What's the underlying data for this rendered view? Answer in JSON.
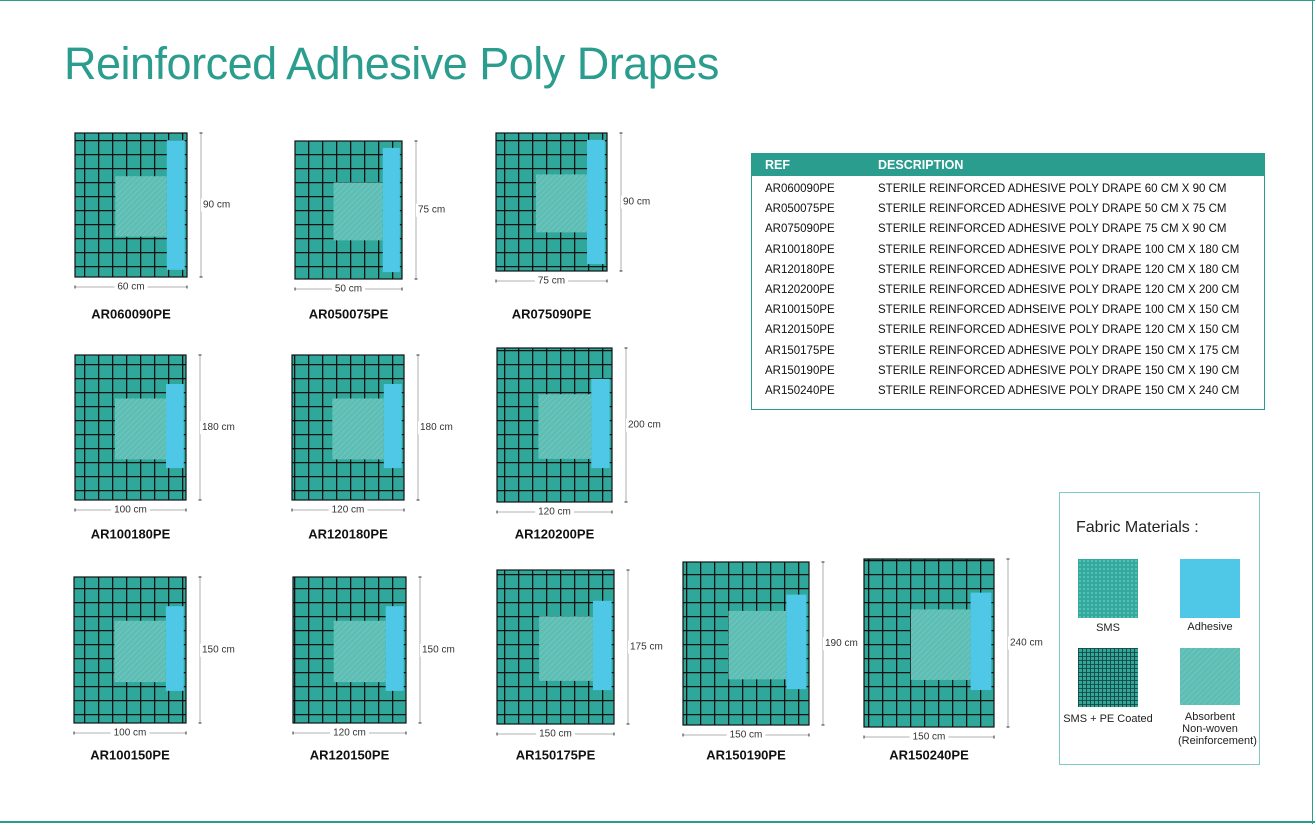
{
  "title": "Reinforced Adhesive Poly Drapes",
  "drapes": [
    {
      "code": "AR060090PE",
      "width": "60 cm",
      "height": "90 cm"
    },
    {
      "code": "AR050075PE",
      "width": "50 cm",
      "height": "75 cm"
    },
    {
      "code": "AR075090PE",
      "width": "75 cm",
      "height": "90 cm"
    },
    {
      "code": "AR100180PE",
      "width": "100 cm",
      "height": "180 cm"
    },
    {
      "code": "AR120180PE",
      "width": "120 cm",
      "height": "180 cm"
    },
    {
      "code": "AR120200PE",
      "width": "120 cm",
      "height": "200 cm"
    },
    {
      "code": "AR100150PE",
      "width": "100 cm",
      "height": "150 cm"
    },
    {
      "code": "AR120150PE",
      "width": "120 cm",
      "height": "150 cm"
    },
    {
      "code": "AR150175PE",
      "width": "150 cm",
      "height": "175 cm"
    },
    {
      "code": "AR150190PE",
      "width": "150 cm",
      "height": "190 cm"
    },
    {
      "code": "AR150240PE",
      "width": "150 cm",
      "height": "240 cm"
    }
  ],
  "table": {
    "header": [
      "REF",
      "DESCRIPTION"
    ],
    "rows": [
      [
        "AR060090PE",
        "STERILE REINFORCED ADHESIVE POLY DRAPE 60 CM X 90 CM"
      ],
      [
        "AR050075PE",
        "STERILE REINFORCED ADHESIVE POLY DRAPE 50 CM X 75 CM"
      ],
      [
        "AR075090PE",
        "STERILE REINFORCED ADHESIVE POLY DRAPE 75 CM X 90 CM"
      ],
      [
        "AR100180PE",
        "STERILE REINFORCED ADHESIVE POLY DRAPE 100 CM X 180 CM"
      ],
      [
        "AR120180PE",
        "STERILE REINFORCED ADHESIVE POLY DRAPE 120 CM X 180 CM"
      ],
      [
        "AR120200PE",
        "STERILE REINFORCED ADHESIVE POLY DRAPE 120 CM X 200 CM"
      ],
      [
        "AR100150PE",
        "STERILE REINFORCED ADHSEIVE POLY DRAPE 100 CM X 150 CM"
      ],
      [
        "AR120150PE",
        "STERILE REINFORCED ADHESIVE POLY DRAPE 120 CM X 150 CM"
      ],
      [
        "AR150175PE",
        "STERILE REINFORCED ADHESIVE POLY DRAPE 150 CM X 175 CM"
      ],
      [
        "AR150190PE",
        "STERILE REINFORCED ADHESIVE POLY DRAPE 150 CM X 190 CM"
      ],
      [
        "AR150240PE",
        "STERILE REINFORCED ADHESIVE POLY DRAPE 150 CM X 240 CM"
      ]
    ]
  },
  "legend": {
    "title": "Fabric Materials :",
    "items": [
      "SMS",
      "Adhesive",
      "SMS + PE Coated",
      "Absorbent Non-woven (Reinforcement)"
    ]
  }
}
